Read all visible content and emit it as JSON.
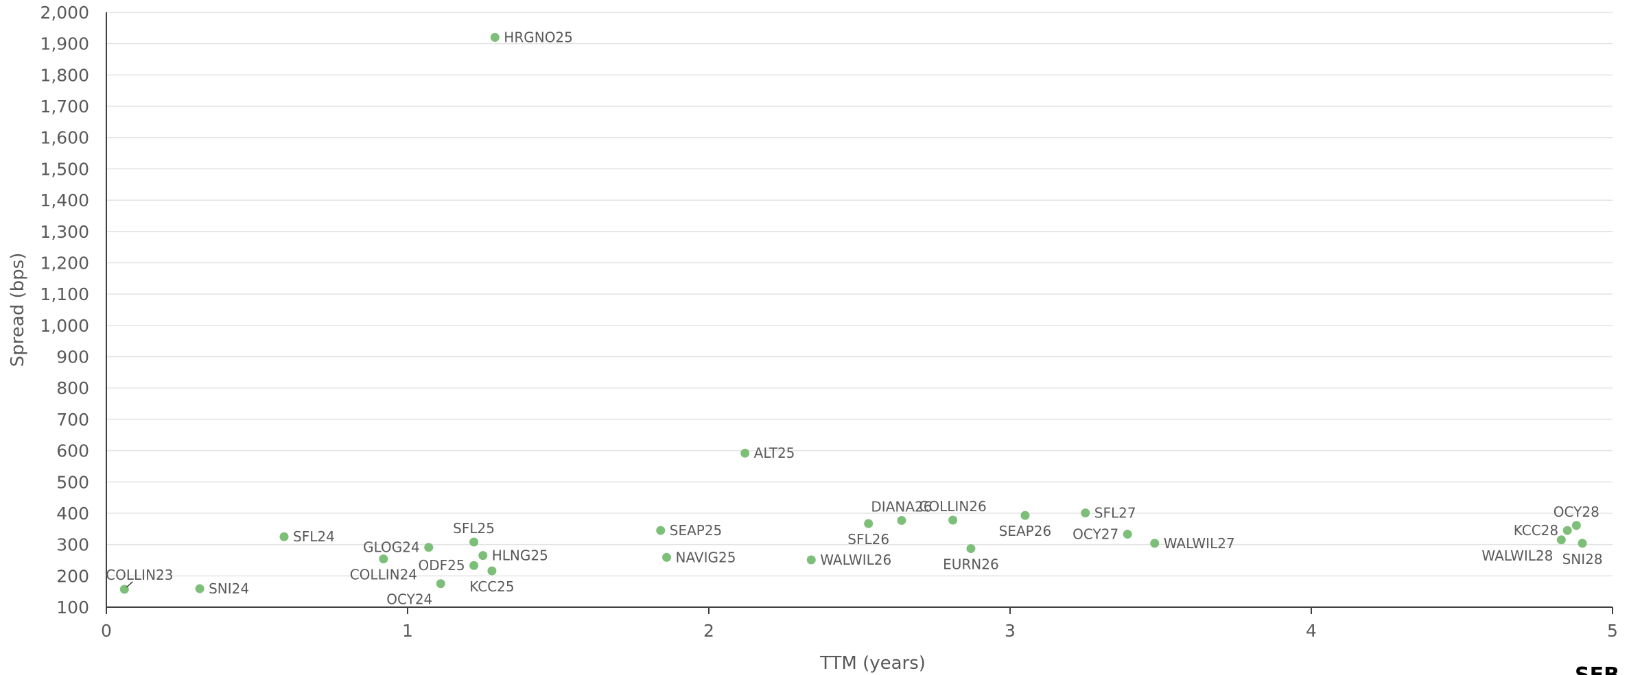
{
  "chart_data": {
    "type": "scatter",
    "xlabel": "TTM (years)",
    "ylabel": "Spread (bps)",
    "xlim": [
      0,
      5
    ],
    "ylim": [
      100,
      2000
    ],
    "x_ticks": [
      0,
      1,
      2,
      3,
      4,
      5
    ],
    "y_ticks": [
      100,
      200,
      300,
      400,
      500,
      600,
      700,
      800,
      900,
      1000,
      1100,
      1200,
      1300,
      1400,
      1500,
      1600,
      1700,
      1800,
      1900,
      2000
    ],
    "grid": true,
    "marker_color": "#7dbf78",
    "points": [
      {
        "label": "COLLIN23",
        "x": 0.06,
        "y": 157,
        "label_pos": "above-leader"
      },
      {
        "label": "SNI24",
        "x": 0.31,
        "y": 159,
        "label_pos": "right"
      },
      {
        "label": "SFL24",
        "x": 0.59,
        "y": 325,
        "label_pos": "right"
      },
      {
        "label": "COLLIN24",
        "x": 0.92,
        "y": 254,
        "label_pos": "below"
      },
      {
        "label": "GLOG24",
        "x": 1.07,
        "y": 291,
        "label_pos": "left"
      },
      {
        "label": "OCY24",
        "x": 1.11,
        "y": 175,
        "label_pos": "below-left"
      },
      {
        "label": "SFL25",
        "x": 1.22,
        "y": 308,
        "label_pos": "above"
      },
      {
        "label": "ODF25",
        "x": 1.22,
        "y": 233,
        "label_pos": "left"
      },
      {
        "label": "HLNG25",
        "x": 1.25,
        "y": 265,
        "label_pos": "right"
      },
      {
        "label": "KCC25",
        "x": 1.28,
        "y": 216,
        "label_pos": "below"
      },
      {
        "label": "HRGNO25",
        "x": 1.29,
        "y": 1920,
        "label_pos": "right"
      },
      {
        "label": "SEAP25",
        "x": 1.84,
        "y": 345,
        "label_pos": "right"
      },
      {
        "label": "NAVIG25",
        "x": 1.86,
        "y": 259,
        "label_pos": "right"
      },
      {
        "label": "ALT25",
        "x": 2.12,
        "y": 592,
        "label_pos": "right"
      },
      {
        "label": "WALWIL26",
        "x": 2.34,
        "y": 251,
        "label_pos": "right"
      },
      {
        "label": "SFL26",
        "x": 2.53,
        "y": 367,
        "label_pos": "below"
      },
      {
        "label": "DIANA26",
        "x": 2.64,
        "y": 377,
        "label_pos": "above"
      },
      {
        "label": "COLLIN26",
        "x": 2.81,
        "y": 378,
        "label_pos": "above"
      },
      {
        "label": "EURN26",
        "x": 2.87,
        "y": 287,
        "label_pos": "below"
      },
      {
        "label": "SEAP26",
        "x": 3.05,
        "y": 393,
        "label_pos": "below"
      },
      {
        "label": "SFL27",
        "x": 3.25,
        "y": 401,
        "label_pos": "right"
      },
      {
        "label": "OCY27",
        "x": 3.39,
        "y": 333,
        "label_pos": "left"
      },
      {
        "label": "WALWIL27",
        "x": 3.48,
        "y": 304,
        "label_pos": "right"
      },
      {
        "label": "WALWIL28",
        "x": 4.83,
        "y": 315,
        "label_pos": "below-left"
      },
      {
        "label": "KCC28",
        "x": 4.85,
        "y": 345,
        "label_pos": "left"
      },
      {
        "label": "OCY28",
        "x": 4.88,
        "y": 361,
        "label_pos": "above"
      },
      {
        "label": "SNI28",
        "x": 4.9,
        "y": 304,
        "label_pos": "below"
      }
    ]
  },
  "logo": {
    "text": "SEB"
  }
}
